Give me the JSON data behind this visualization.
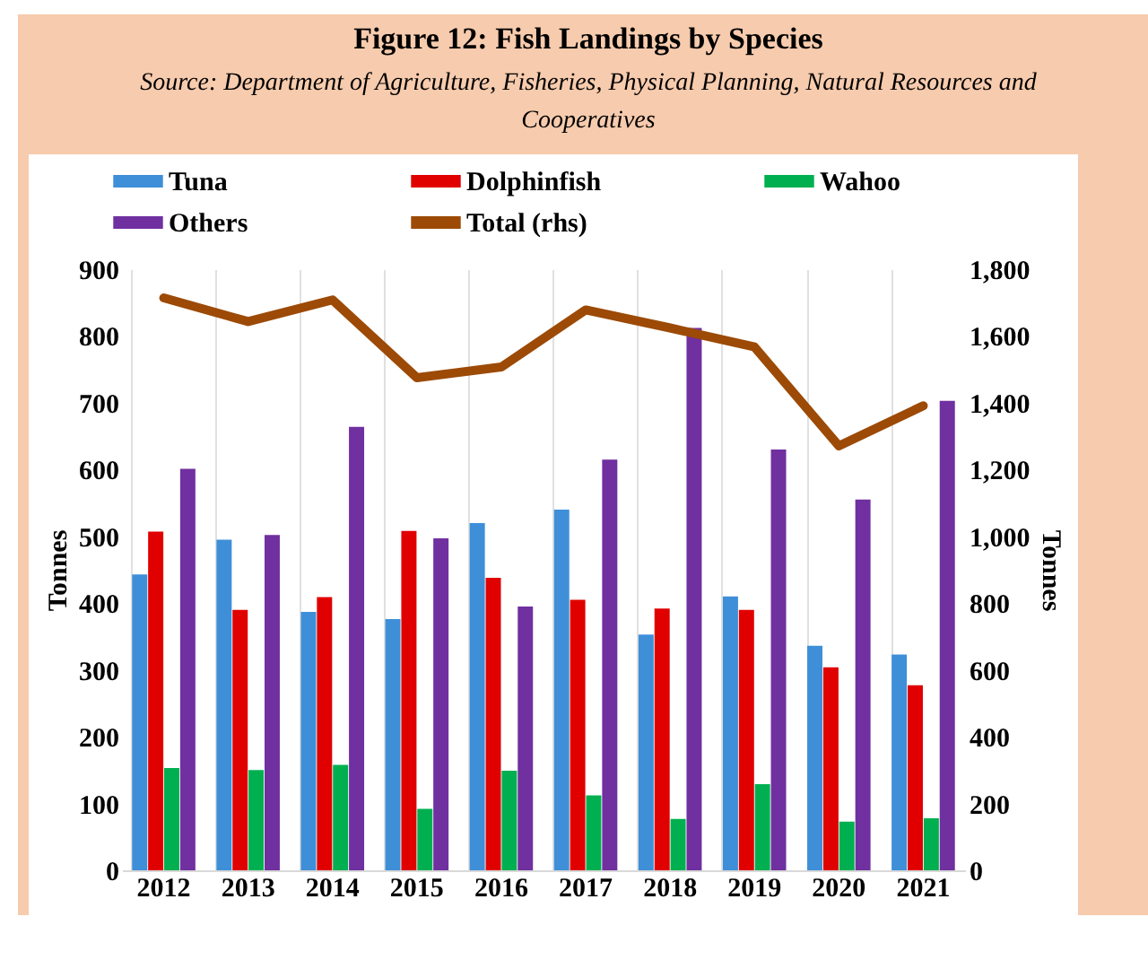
{
  "chart_data": {
    "type": "bar",
    "title": "Figure 12: Fish Landings by Species",
    "subtitle": "Source: Department of Agriculture, Fisheries, Physical Planning, Natural Resources and Cooperatives",
    "ylabel": "Tonnes",
    "y2label": "Tonnes",
    "categories": [
      "2012",
      "2013",
      "2014",
      "2015",
      "2016",
      "2017",
      "2018",
      "2019",
      "2020",
      "2021"
    ],
    "series": [
      {
        "name": "Tuna",
        "color": "#3e8fd8",
        "values": [
          443,
          495,
          387,
          376,
          520,
          540,
          353,
          410,
          336,
          323
        ]
      },
      {
        "name": "Dolphinfish",
        "color": "#e00000",
        "values": [
          507,
          390,
          409,
          508,
          438,
          405,
          392,
          390,
          304,
          277
        ]
      },
      {
        "name": "Wahoo",
        "color": "#00b050",
        "values": [
          153,
          150,
          158,
          92,
          149,
          112,
          77,
          129,
          73,
          78
        ]
      },
      {
        "name": "Others",
        "color": "#7030a0",
        "values": [
          601,
          502,
          664,
          497,
          395,
          615,
          812,
          630,
          555,
          703
        ]
      },
      {
        "name": "Total (rhs)",
        "type": "line",
        "axis": "y2",
        "color": "#9c4a06",
        "values": [
          1714,
          1643,
          1708,
          1475,
          1507,
          1678,
          1624,
          1567,
          1271,
          1391
        ]
      }
    ],
    "ylim": [
      0,
      900
    ],
    "yticks": [
      0,
      100,
      200,
      300,
      400,
      500,
      600,
      700,
      800,
      900
    ],
    "y2lim": [
      0,
      1800
    ],
    "y2ticks": [
      0,
      200,
      400,
      600,
      800,
      {
        "value": 1000,
        "label": "1,000"
      },
      {
        "value": 1200,
        "label": "1,200"
      },
      {
        "value": 1400,
        "label": "1,400"
      },
      {
        "value": 1600,
        "label": "1,600"
      },
      {
        "value": 1800,
        "label": "1,800"
      }
    ],
    "grid": "x",
    "legend": "top"
  }
}
